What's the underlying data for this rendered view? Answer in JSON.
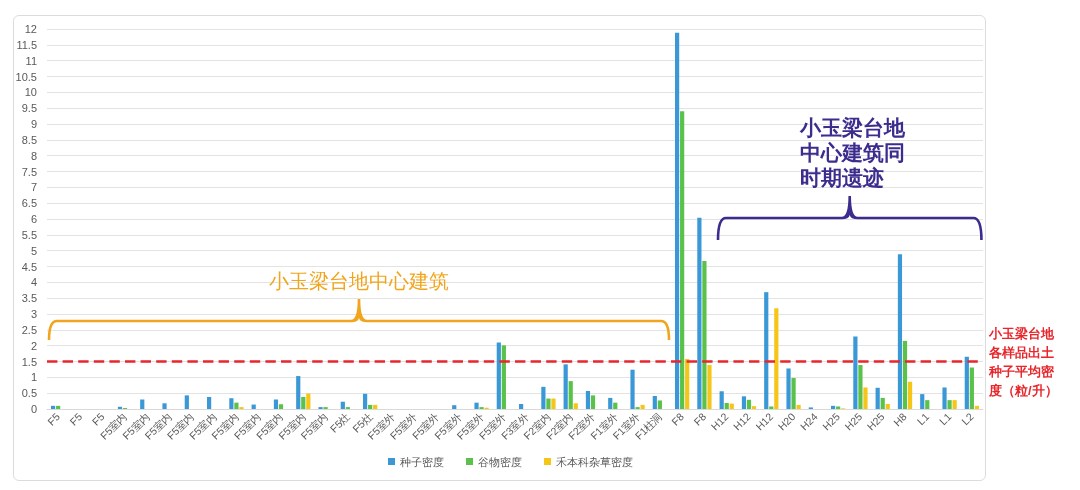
{
  "chart_data": {
    "type": "bar",
    "categories": [
      "F5",
      "F5",
      "F5",
      "F5室内",
      "F5室内",
      "F5室内",
      "F5室内",
      "F5室内",
      "F5室内",
      "F5室内",
      "F5室内",
      "F5室内",
      "F5室内",
      "F5灶",
      "F5灶",
      "F5室外",
      "F5室外",
      "F5室外",
      "F5室外",
      "F5室外",
      "F5室外",
      "F3室外",
      "F2室内",
      "F2室内",
      "F2室外",
      "F1室外",
      "F1室外",
      "F1柱洞",
      "F8",
      "F8",
      "H12",
      "H12",
      "H12",
      "H20",
      "H24",
      "H25",
      "H25",
      "H25",
      "H8",
      "L1",
      "L1",
      "L2"
    ],
    "series": [
      {
        "name": "种子密度",
        "color": "#3a98d6",
        "values": [
          0.1,
          0,
          0,
          0.07,
          0.3,
          0.18,
          0.43,
          0.38,
          0.34,
          0.14,
          0.3,
          1.04,
          0.06,
          0.23,
          0.48,
          0,
          0,
          0,
          0.12,
          0.2,
          2.1,
          0.16,
          0.7,
          1.41,
          0.57,
          0.35,
          1.24,
          0.41,
          11.88,
          6.04,
          0.56,
          0.4,
          3.69,
          1.28,
          0.05,
          0.1,
          2.29,
          0.67,
          4.89,
          0.47,
          0.68,
          1.65
        ]
      },
      {
        "name": "谷物密度",
        "color": "#5ac24a",
        "values": [
          0.1,
          0,
          0,
          0.03,
          0,
          0,
          0,
          0,
          0.2,
          0,
          0.15,
          0.38,
          0.06,
          0.06,
          0.13,
          0,
          0,
          0,
          0,
          0.06,
          2.01,
          0,
          0.33,
          0.88,
          0.43,
          0.2,
          0.06,
          0.27,
          9.4,
          4.67,
          0.19,
          0.29,
          0.08,
          0.98,
          0,
          0.08,
          1.39,
          0.35,
          2.15,
          0.28,
          0.28,
          1.31
        ]
      },
      {
        "name": "禾本科杂草密度",
        "color": "#f5c518",
        "values": [
          0,
          0,
          0,
          0,
          0,
          0,
          0,
          0,
          0.06,
          0,
          0,
          0.49,
          0,
          0,
          0.13,
          0,
          0,
          0,
          0,
          0.04,
          0,
          0,
          0.33,
          0.18,
          0,
          0,
          0.13,
          0,
          1.58,
          1.39,
          0.17,
          0.09,
          3.18,
          0.13,
          0,
          0.02,
          0.68,
          0.16,
          0.86,
          0,
          0.28,
          0.1
        ]
      }
    ],
    "ylim": [
      0,
      12
    ],
    "yticks": [
      0,
      0.5,
      1,
      1.5,
      2,
      2.5,
      3,
      3.5,
      4,
      4.5,
      5,
      5.5,
      6,
      6.5,
      7,
      7.5,
      8,
      8.5,
      9,
      9.5,
      10,
      10.5,
      11,
      11.5,
      12
    ],
    "grid": "y",
    "legend": "bottom",
    "ref_lines": [
      {
        "axis": "y",
        "value": 1.5,
        "label": "小玉梁台地各样品出土种子平均密度（粒/升）",
        "color": "#e8262b",
        "line_style": "dashed"
      }
    ],
    "annotations": [
      "小玉梁台地中心建筑",
      "小玉梁台地中心建筑同时期遗迹"
    ]
  }
}
